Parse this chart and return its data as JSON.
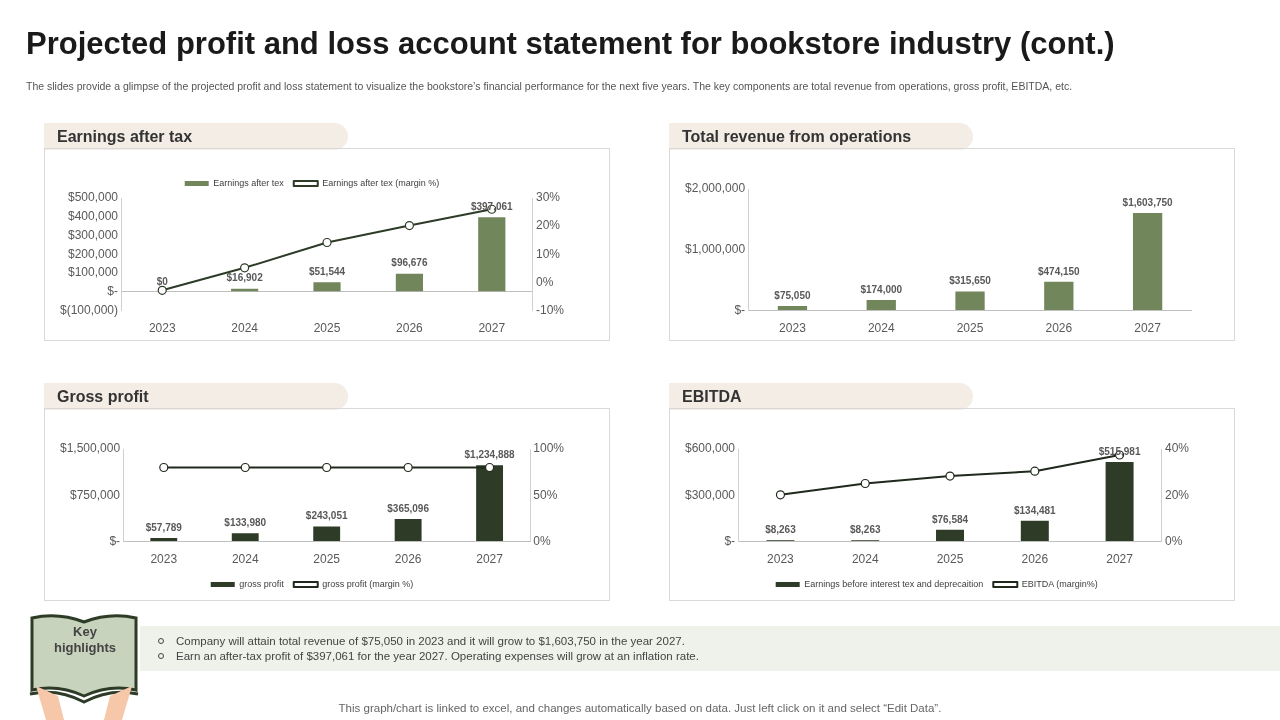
{
  "chart_data": [
    {
      "type": "other",
      "title": "Projected profit and loss account statement for bookstore industry (cont.)",
      "subtitle": "The slides provide a glimpse of the projected profit and loss statement to visualize the bookstore’s financial performance for the next five years. The key components are total revenue from operations, gross profit, EBITDA, etc.",
      "annotations": [
        "Key highlights",
        "Company will attain total revenue of $75,050 in 2023 and it will grow to $1,603,750 in the year 2027.",
        "Earn an after-tax  profit of $397,061 for the year 2027. Operating expenses will grow at an inflation rate.",
        "This graph/chart is linked to excel,  and changes automatically based on data. Just left click on it and select “Edit Data”."
      ]
    },
    {
      "type": "bar",
      "title": "Earnings after tax",
      "categories": [
        "2023",
        "2024",
        "2025",
        "2026",
        "2027"
      ],
      "series": [
        {
          "name": "Earnings after tex",
          "type": "bar",
          "color": "#72865c",
          "values": [
            0,
            16902,
            51544,
            96676,
            397061
          ],
          "value_labels": [
            "$0",
            "$16,902",
            "$51,544",
            "$96,676",
            "$397,061"
          ]
        },
        {
          "name": "Earnings after tex (margin %)",
          "type": "line",
          "axis": "y2",
          "color": "#2d3b27",
          "values": [
            -2.8,
            5.2,
            14.2,
            20.2,
            26.0
          ]
        }
      ],
      "ylim": [
        -100000,
        500000
      ],
      "yticks": [
        {
          "value": -100000,
          "label": "$(100,000)"
        },
        {
          "value": 0,
          "label": "$-"
        },
        {
          "value": 100000,
          "label": "$100,000"
        },
        {
          "value": 200000,
          "label": "$200,000"
        },
        {
          "value": 300000,
          "label": "$300,000"
        },
        {
          "value": 400000,
          "label": "$400,000"
        },
        {
          "value": 500000,
          "label": "$500,000"
        }
      ],
      "y2lim": [
        -10,
        30
      ],
      "y2ticks": [
        {
          "value": -10,
          "label": "-10%"
        },
        {
          "value": 0,
          "label": "0%"
        },
        {
          "value": 10,
          "label": "10%"
        },
        {
          "value": 20,
          "label": "20%"
        },
        {
          "value": 30,
          "label": "30%"
        }
      ],
      "legend": "top",
      "marker": "circle"
    },
    {
      "type": "bar",
      "title": "Total revenue from operations",
      "categories": [
        "2023",
        "2024",
        "2025",
        "2026",
        "2027"
      ],
      "series": [
        {
          "type": "bar",
          "color": "#72865c",
          "values": [
            75050,
            174000,
            315650,
            474150,
            1603750
          ],
          "value_labels": [
            "$75,050",
            "$174,000",
            "$315,650",
            "$474,150",
            "$1,603,750"
          ]
        }
      ],
      "ylim": [
        0,
        2000000
      ],
      "yticks": [
        {
          "value": 0,
          "label": "$-"
        },
        {
          "value": 1000000,
          "label": "$1,000,000"
        },
        {
          "value": 2000000,
          "label": "$2,000,000"
        }
      ]
    },
    {
      "type": "bar",
      "title": "Gross profit",
      "categories": [
        "2023",
        "2024",
        "2025",
        "2026",
        "2027"
      ],
      "series": [
        {
          "name": "gross profit",
          "type": "bar",
          "color": "#2d3b27",
          "values": [
            57789,
            133980,
            243051,
            365096,
            1234888
          ],
          "value_labels": [
            "$57,789",
            "$133,980",
            "$243,051",
            "$365,096",
            "$1,234,888"
          ]
        },
        {
          "name": "gross profit (margin %)",
          "type": "line",
          "axis": "y2",
          "color": "#1f2a1c",
          "values": [
            80,
            80,
            80,
            80,
            80
          ]
        }
      ],
      "ylim": [
        0,
        1500000
      ],
      "yticks": [
        {
          "value": 0,
          "label": "$-"
        },
        {
          "value": 750000,
          "label": "$750,000"
        },
        {
          "value": 1500000,
          "label": "$1,500,000"
        }
      ],
      "y2lim": [
        0,
        100
      ],
      "y2ticks": [
        {
          "value": 0,
          "label": "0%"
        },
        {
          "value": 50,
          "label": "50%"
        },
        {
          "value": 100,
          "label": "100%"
        }
      ],
      "legend": "bottom",
      "marker": "circle"
    },
    {
      "type": "bar",
      "title": "EBITDA",
      "categories": [
        "2023",
        "2024",
        "2025",
        "2026",
        "2027"
      ],
      "series": [
        {
          "name": "Earnings before interest tex and deprecaition",
          "type": "bar",
          "color": "#2d3b27",
          "values": [
            8263,
            8263,
            76584,
            134481,
            515981
          ],
          "value_labels": [
            "$8,263",
            "$8,263",
            "$76,584",
            "$134,481",
            "$515,981"
          ]
        },
        {
          "name": "EBITDA (margin%)",
          "type": "line",
          "axis": "y2",
          "color": "#1f2a1c",
          "values": [
            20.2,
            25.1,
            28.3,
            30.4,
            37.4
          ]
        }
      ],
      "ylim": [
        0,
        600000
      ],
      "yticks": [
        {
          "value": 0,
          "label": "$-"
        },
        {
          "value": 300000,
          "label": "$300,000"
        },
        {
          "value": 600000,
          "label": "$600,000"
        }
      ],
      "y2lim": [
        0,
        40
      ],
      "y2ticks": [
        {
          "value": 0,
          "label": "0%"
        },
        {
          "value": 20,
          "label": "20%"
        },
        {
          "value": 40,
          "label": "40%"
        }
      ],
      "legend": "bottom",
      "marker": "circle"
    }
  ]
}
